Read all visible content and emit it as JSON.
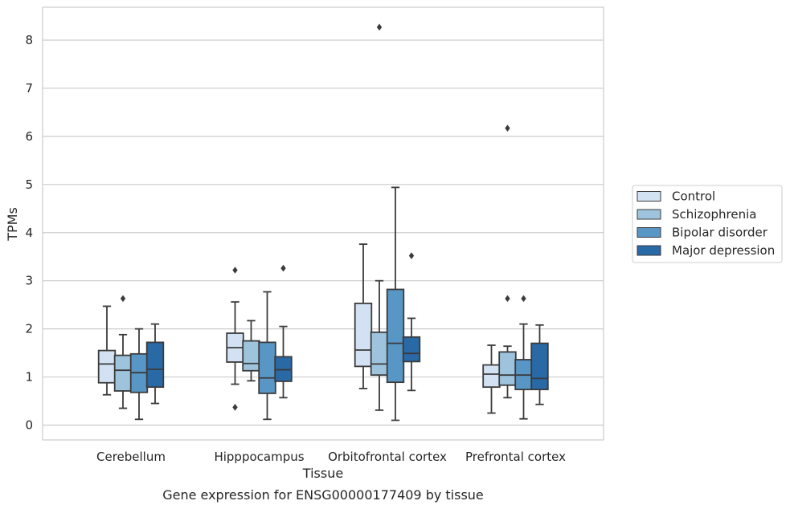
{
  "chart_data": {
    "type": "box",
    "xlabel": "Tissue",
    "ylabel": "TPMs",
    "caption": "Gene expression for ENSG00000177409 by tissue",
    "ylim": [
      -0.3,
      8.7
    ],
    "yticks": [
      0,
      1,
      2,
      3,
      4,
      5,
      6,
      7,
      8
    ],
    "grid": "horizontal",
    "legend_position": "right",
    "categories": [
      "Cerebellum",
      "Hipppocampus",
      "Orbitofrontal cortex",
      "Prefrontal cortex"
    ],
    "series": [
      {
        "name": "Control",
        "color": "#d2e2f2",
        "boxes": [
          {
            "whisker_low": 0.63,
            "q1": 0.88,
            "median": 1.27,
            "q3": 1.55,
            "whisker_high": 2.47,
            "outliers": []
          },
          {
            "whisker_low": 0.85,
            "q1": 1.31,
            "median": 1.61,
            "q3": 1.91,
            "whisker_high": 2.56,
            "outliers": [
              0.37,
              3.22
            ]
          },
          {
            "whisker_low": 0.76,
            "q1": 1.22,
            "median": 1.56,
            "q3": 2.53,
            "whisker_high": 3.76,
            "outliers": []
          },
          {
            "whisker_low": 0.25,
            "q1": 0.79,
            "median": 1.06,
            "q3": 1.25,
            "whisker_high": 1.66,
            "outliers": []
          }
        ]
      },
      {
        "name": "Schizophrenia",
        "color": "#9dc3dd",
        "boxes": [
          {
            "whisker_low": 0.35,
            "q1": 0.71,
            "median": 1.14,
            "q3": 1.45,
            "whisker_high": 1.88,
            "outliers": [
              2.63
            ]
          },
          {
            "whisker_low": 0.92,
            "q1": 1.13,
            "median": 1.28,
            "q3": 1.75,
            "whisker_high": 2.17,
            "outliers": []
          },
          {
            "whisker_low": 0.31,
            "q1": 1.04,
            "median": 1.27,
            "q3": 1.93,
            "whisker_high": 3.0,
            "outliers": [
              8.27
            ]
          },
          {
            "whisker_low": 0.57,
            "q1": 0.83,
            "median": 1.04,
            "q3": 1.52,
            "whisker_high": 1.64,
            "outliers": [
              2.63,
              6.17
            ]
          }
        ]
      },
      {
        "name": "Bipolar disorder",
        "color": "#5896c5",
        "boxes": [
          {
            "whisker_low": 0.12,
            "q1": 0.68,
            "median": 1.09,
            "q3": 1.48,
            "whisker_high": 2.0,
            "outliers": []
          },
          {
            "whisker_low": 0.12,
            "q1": 0.66,
            "median": 0.98,
            "q3": 1.72,
            "whisker_high": 2.77,
            "outliers": []
          },
          {
            "whisker_low": 0.1,
            "q1": 0.89,
            "median": 1.7,
            "q3": 2.82,
            "whisker_high": 4.94,
            "outliers": []
          },
          {
            "whisker_low": 0.13,
            "q1": 0.74,
            "median": 1.04,
            "q3": 1.36,
            "whisker_high": 2.1,
            "outliers": [
              2.63
            ]
          }
        ]
      },
      {
        "name": "Major depression",
        "color": "#2869a6",
        "boxes": [
          {
            "whisker_low": 0.45,
            "q1": 0.79,
            "median": 1.16,
            "q3": 1.72,
            "whisker_high": 2.1,
            "outliers": []
          },
          {
            "whisker_low": 0.57,
            "q1": 0.91,
            "median": 1.15,
            "q3": 1.42,
            "whisker_high": 2.05,
            "outliers": [
              3.26
            ]
          },
          {
            "whisker_low": 0.72,
            "q1": 1.32,
            "median": 1.49,
            "q3": 1.83,
            "whisker_high": 2.22,
            "outliers": [
              3.52
            ]
          },
          {
            "whisker_low": 0.43,
            "q1": 0.74,
            "median": 0.97,
            "q3": 1.7,
            "whisker_high": 2.08,
            "outliers": []
          }
        ]
      }
    ]
  }
}
